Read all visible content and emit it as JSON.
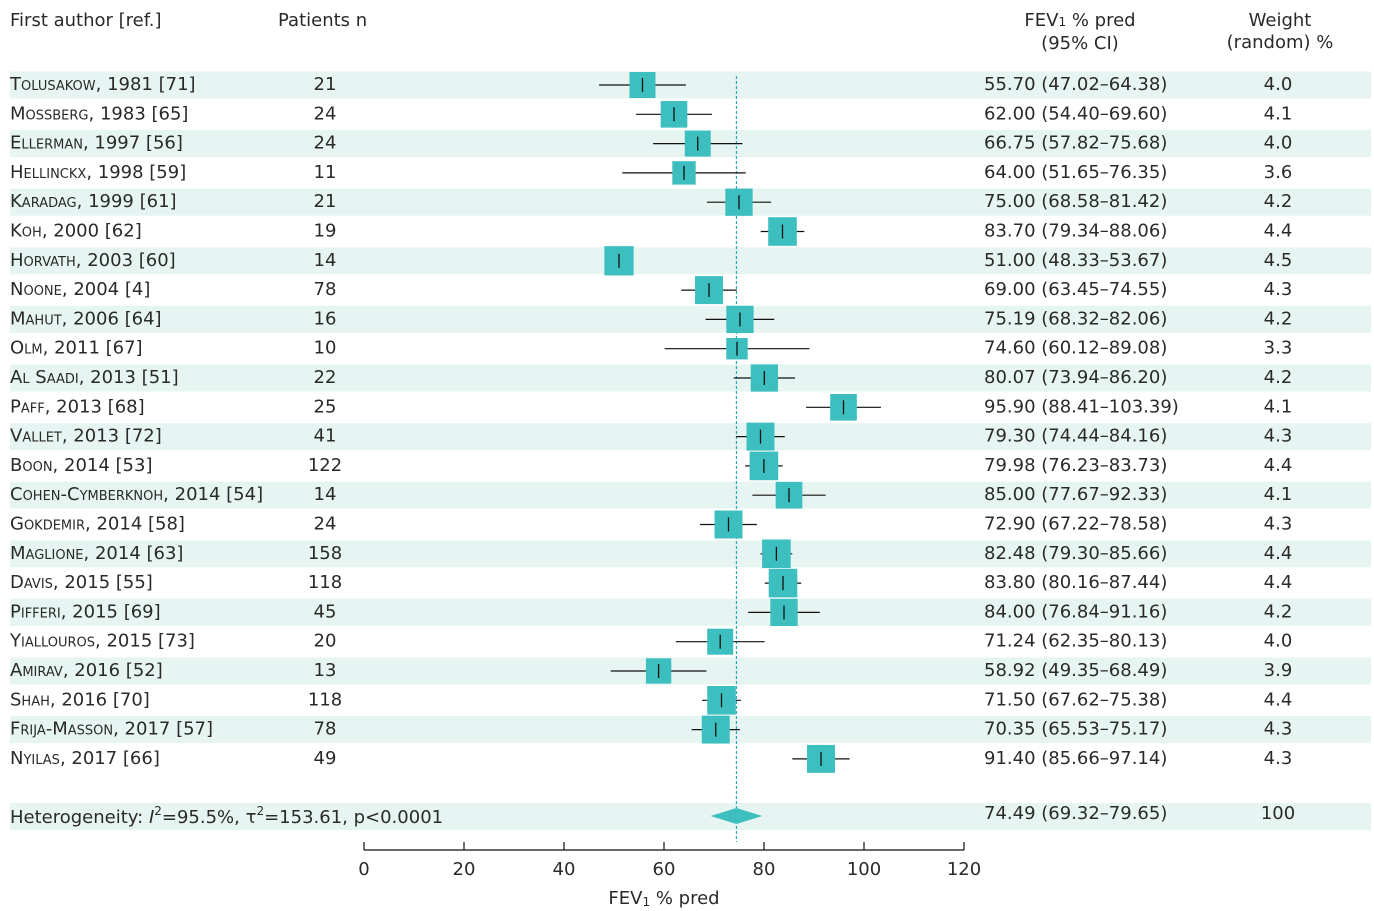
{
  "headers": {
    "author": "First author [ref.]",
    "patients": "Patients n",
    "fev_line1": "% pred",
    "fev_sub_prefix": "FEV",
    "fev_sub": "1",
    "fev_line2": "(95% CI)",
    "weight_line1": "Weight",
    "weight_line2": "(random) %"
  },
  "colors": {
    "box": "#3dbfbf",
    "stripe": "#e6f4f2",
    "ref_line": "#2aa9b9",
    "text": "#2a2a2a"
  },
  "chart_data": {
    "type": "forest",
    "xlabel_prefix": "FEV",
    "xlabel_sub": "1",
    "xlabel_suffix": " % pred",
    "xlim": [
      0,
      120
    ],
    "xticks": [
      "0",
      "20",
      "40",
      "60",
      "80",
      "100",
      "120"
    ],
    "pooled_reference": 74.49,
    "studies": [
      {
        "author": "Tolusakow",
        "rest": ", 1981 [71]",
        "n": "21",
        "est": 55.7,
        "lo": 47.02,
        "hi": 64.38,
        "ci_text": "55.70 (47.02–64.38)",
        "weight": "4.0"
      },
      {
        "author": "Mossberg",
        "rest": ", 1983 [65]",
        "n": "24",
        "est": 62.0,
        "lo": 54.4,
        "hi": 69.6,
        "ci_text": "62.00 (54.40–69.60)",
        "weight": "4.1"
      },
      {
        "author": "Ellerman",
        "rest": ", 1997 [56]",
        "n": "24",
        "est": 66.75,
        "lo": 57.82,
        "hi": 75.68,
        "ci_text": "66.75 (57.82–75.68)",
        "weight": "4.0"
      },
      {
        "author": "Hellinckx",
        "rest": ", 1998 [59]",
        "n": "11",
        "est": 64.0,
        "lo": 51.65,
        "hi": 76.35,
        "ci_text": "64.00 (51.65–76.35)",
        "weight": "3.6"
      },
      {
        "author": "Karadag",
        "rest": ", 1999 [61]",
        "n": "21",
        "est": 75.0,
        "lo": 68.58,
        "hi": 81.42,
        "ci_text": "75.00 (68.58–81.42)",
        "weight": "4.2"
      },
      {
        "author": "Koh",
        "rest": ", 2000 [62]",
        "n": "19",
        "est": 83.7,
        "lo": 79.34,
        "hi": 88.06,
        "ci_text": "83.70 (79.34–88.06)",
        "weight": "4.4"
      },
      {
        "author": "Horvath",
        "rest": ", 2003 [60]",
        "n": "14",
        "est": 51.0,
        "lo": 48.33,
        "hi": 53.67,
        "ci_text": "51.00 (48.33–53.67)",
        "weight": "4.5"
      },
      {
        "author": "Noone",
        "rest": ", 2004 [4]",
        "n": "78",
        "est": 69.0,
        "lo": 63.45,
        "hi": 74.55,
        "ci_text": "69.00 (63.45–74.55)",
        "weight": "4.3"
      },
      {
        "author": "Mahut",
        "rest": ", 2006 [64]",
        "n": "16",
        "est": 75.19,
        "lo": 68.32,
        "hi": 82.06,
        "ci_text": "75.19 (68.32–82.06)",
        "weight": "4.2"
      },
      {
        "author": "Olm",
        "rest": ", 2011 [67]",
        "n": "10",
        "est": 74.6,
        "lo": 60.12,
        "hi": 89.08,
        "ci_text": "74.60 (60.12–89.08)",
        "weight": "3.3"
      },
      {
        "author": "Al Saadi",
        "rest": ", 2013 [51]",
        "n": "22",
        "est": 80.07,
        "lo": 73.94,
        "hi": 86.2,
        "ci_text": "80.07 (73.94–86.20)",
        "weight": "4.2"
      },
      {
        "author": "Paff",
        "rest": ", 2013 [68]",
        "n": "25",
        "est": 95.9,
        "lo": 88.41,
        "hi": 103.39,
        "ci_text": "95.90 (88.41–103.39)",
        "weight": "4.1"
      },
      {
        "author": "Vallet",
        "rest": ", 2013 [72]",
        "n": "41",
        "est": 79.3,
        "lo": 74.44,
        "hi": 84.16,
        "ci_text": "79.30 (74.44–84.16)",
        "weight": "4.3"
      },
      {
        "author": "Boon",
        "rest": ", 2014 [53]",
        "n": "122",
        "est": 79.98,
        "lo": 76.23,
        "hi": 83.73,
        "ci_text": "79.98 (76.23–83.73)",
        "weight": "4.4"
      },
      {
        "author": "Cohen-Cymberknoh",
        "rest": ", 2014 [54]",
        "n": "14",
        "est": 85.0,
        "lo": 77.67,
        "hi": 92.33,
        "ci_text": "85.00 (77.67–92.33)",
        "weight": "4.1"
      },
      {
        "author": "Gokdemir",
        "rest": ", 2014 [58]",
        "n": "24",
        "est": 72.9,
        "lo": 67.22,
        "hi": 78.58,
        "ci_text": "72.90 (67.22–78.58)",
        "weight": "4.3"
      },
      {
        "author": "Maglione",
        "rest": ", 2014 [63]",
        "n": "158",
        "est": 82.48,
        "lo": 79.3,
        "hi": 85.66,
        "ci_text": "82.48 (79.30–85.66)",
        "weight": "4.4"
      },
      {
        "author": "Davis",
        "rest": ", 2015 [55]",
        "n": "118",
        "est": 83.8,
        "lo": 80.16,
        "hi": 87.44,
        "ci_text": "83.80 (80.16–87.44)",
        "weight": "4.4"
      },
      {
        "author": "Pifferi",
        "rest": ", 2015 [69]",
        "n": "45",
        "est": 84.0,
        "lo": 76.84,
        "hi": 91.16,
        "ci_text": "84.00 (76.84–91.16)",
        "weight": "4.2"
      },
      {
        "author": "Yiallouros",
        "rest": ", 2015 [73]",
        "n": "20",
        "est": 71.24,
        "lo": 62.35,
        "hi": 80.13,
        "ci_text": "71.24 (62.35–80.13)",
        "weight": "4.0"
      },
      {
        "author": "Amirav",
        "rest": ", 2016 [52]",
        "n": "13",
        "est": 58.92,
        "lo": 49.35,
        "hi": 68.49,
        "ci_text": "58.92 (49.35–68.49)",
        "weight": "3.9"
      },
      {
        "author": "Shah",
        "rest": ", 2016 [70]",
        "n": "118",
        "est": 71.5,
        "lo": 67.62,
        "hi": 75.38,
        "ci_text": "71.50 (67.62–75.38)",
        "weight": "4.4"
      },
      {
        "author": "Frija-Masson",
        "rest": ", 2017 [57]",
        "n": "78",
        "est": 70.35,
        "lo": 65.53,
        "hi": 75.17,
        "ci_text": "70.35 (65.53–75.17)",
        "weight": "4.3"
      },
      {
        "author": "Nyilas",
        "rest": ", 2017 [66]",
        "n": "49",
        "est": 91.4,
        "lo": 85.66,
        "hi": 97.14,
        "ci_text": "91.40 (85.66–97.14)",
        "weight": "4.3"
      }
    ],
    "summary": {
      "label_prefix": "Heterogeneity: ",
      "i2_symbol": "I",
      "i2_value": "=95.5%, ",
      "tau_symbol": "τ",
      "tau_value": "=153.61, p<0.0001",
      "est": 74.49,
      "lo": 69.32,
      "hi": 79.65,
      "ci_text": "74.49 (69.32–79.65)",
      "weight": "100"
    }
  }
}
